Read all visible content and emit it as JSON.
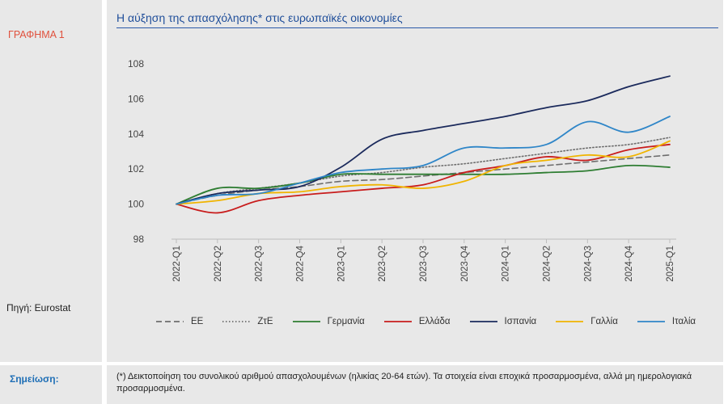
{
  "figure_label": "ΓΡΑΦΗΜΑ 1",
  "source": "Πηγή: Eurostat",
  "note_label": "Σημείωση:",
  "note_text": "(*) Δεικτοποίηση του συνολικού αριθμού απασχολουμένων (ηλικίας 20-64 ετών). Τα στοιχεία είναι εποχικά προσαρμοσμένα, αλλά μη ημερολογιακά προσαρμοσμένα.",
  "chart_data": {
    "type": "line",
    "title": "Η αύξηση της απασχόλησης* στις ευρωπαϊκές οικονομίες",
    "xlabel": "",
    "ylabel": "",
    "ylim": [
      98,
      108
    ],
    "yticks": [
      98,
      100,
      102,
      104,
      106,
      108
    ],
    "grid": false,
    "legend_position": "bottom",
    "categories": [
      "2022-Q1",
      "2022-Q2",
      "2022-Q3",
      "2022-Q4",
      "2023-Q1",
      "2023-Q2",
      "2023-Q3",
      "2023-Q4",
      "2024-Q1",
      "2024-Q2",
      "2024-Q3",
      "2024-Q4",
      "2025-Q1"
    ],
    "series": [
      {
        "name": "ΕΕ",
        "color": "#6e6e6e",
        "dash": "dashed",
        "values": [
          100.0,
          100.5,
          100.8,
          101.0,
          101.3,
          101.4,
          101.6,
          101.8,
          102.0,
          102.2,
          102.4,
          102.6,
          102.8
        ]
      },
      {
        "name": "ΖτΕ",
        "color": "#6e6e6e",
        "dash": "dotted",
        "values": [
          100.0,
          100.6,
          100.9,
          101.2,
          101.6,
          101.8,
          102.1,
          102.3,
          102.6,
          102.9,
          103.2,
          103.4,
          103.8
        ]
      },
      {
        "name": "Γερμανία",
        "color": "#2e7d32",
        "dash": "solid",
        "values": [
          100.0,
          100.9,
          100.9,
          101.2,
          101.7,
          101.7,
          101.7,
          101.7,
          101.7,
          101.8,
          101.9,
          102.2,
          102.1
        ]
      },
      {
        "name": "Ελλάδα",
        "color": "#c81c1c",
        "dash": "solid",
        "values": [
          100.0,
          99.5,
          100.2,
          100.5,
          100.7,
          100.9,
          101.1,
          101.8,
          102.2,
          102.7,
          102.5,
          103.1,
          103.4
        ]
      },
      {
        "name": "Ισπανία",
        "color": "#1b2a5c",
        "dash": "solid",
        "values": [
          100.0,
          100.6,
          100.8,
          101.0,
          102.1,
          103.7,
          104.2,
          104.6,
          105.0,
          105.5,
          105.9,
          106.7,
          107.3
        ]
      },
      {
        "name": "Γαλλία",
        "color": "#f0b400",
        "dash": "solid",
        "values": [
          100.0,
          100.2,
          100.6,
          100.7,
          101.0,
          101.1,
          100.9,
          101.3,
          102.2,
          102.5,
          102.8,
          102.7,
          103.6
        ]
      },
      {
        "name": "Ιταλία",
        "color": "#2f86c8",
        "dash": "solid",
        "values": [
          100.0,
          100.5,
          100.6,
          101.2,
          101.8,
          102.0,
          102.2,
          103.2,
          103.2,
          103.4,
          104.7,
          104.1,
          105.0
        ]
      }
    ]
  }
}
